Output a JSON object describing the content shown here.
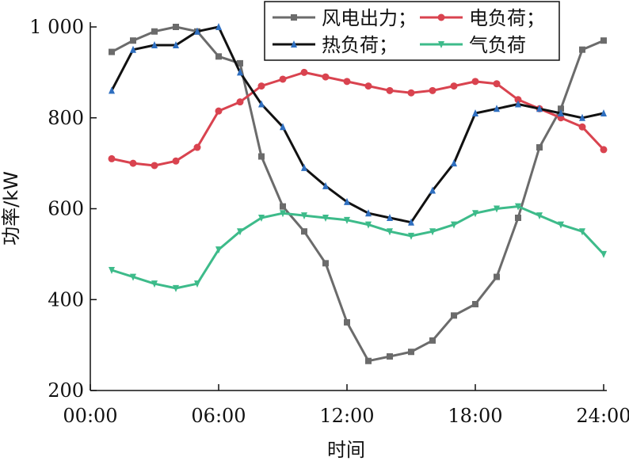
{
  "chart_data": {
    "type": "line",
    "xlabel": "时间",
    "ylabel": "功率/kW",
    "xlim": [
      0,
      24
    ],
    "ylim": [
      200,
      1000
    ],
    "x_ticks": [
      0,
      6,
      12,
      18,
      24
    ],
    "x_tick_labels": [
      "00:00",
      "06:00",
      "12:00",
      "18:00",
      "24:00"
    ],
    "y_ticks": [
      200,
      400,
      600,
      800,
      1000
    ],
    "y_tick_labels": [
      "200",
      "400",
      "600",
      "800",
      "1 000"
    ],
    "legend_position": "top-right",
    "grid": false,
    "x": [
      1,
      2,
      3,
      4,
      5,
      6,
      7,
      8,
      9,
      10,
      11,
      12,
      13,
      14,
      15,
      16,
      17,
      18,
      19,
      20,
      21,
      22,
      23,
      24
    ],
    "series": [
      {
        "name": "风电出力；",
        "color": "#6b6b6b",
        "marker": "square",
        "values": [
          945,
          970,
          990,
          1000,
          990,
          935,
          920,
          715,
          605,
          550,
          480,
          350,
          265,
          275,
          285,
          310,
          365,
          390,
          450,
          580,
          735,
          820,
          950,
          970
        ]
      },
      {
        "name": "电负荷；",
        "color": "#d9434f",
        "marker": "circle",
        "values": [
          710,
          700,
          695,
          705,
          735,
          815,
          835,
          870,
          885,
          900,
          890,
          880,
          870,
          860,
          855,
          860,
          870,
          880,
          875,
          840,
          820,
          800,
          780,
          730
        ]
      },
      {
        "name": "热负荷；",
        "color": "#111111",
        "marker": "triangle-up",
        "marker_color": "#2f6fc0",
        "values": [
          860,
          950,
          960,
          960,
          990,
          1000,
          900,
          830,
          780,
          690,
          650,
          615,
          590,
          580,
          570,
          640,
          700,
          810,
          820,
          830,
          820,
          810,
          800,
          810
        ]
      },
      {
        "name": "气负荷",
        "color": "#3dbb8a",
        "marker": "triangle-down",
        "values": [
          465,
          450,
          435,
          425,
          435,
          510,
          550,
          580,
          590,
          585,
          580,
          575,
          565,
          550,
          540,
          550,
          565,
          590,
          600,
          605,
          585,
          565,
          550,
          500
        ]
      }
    ]
  }
}
